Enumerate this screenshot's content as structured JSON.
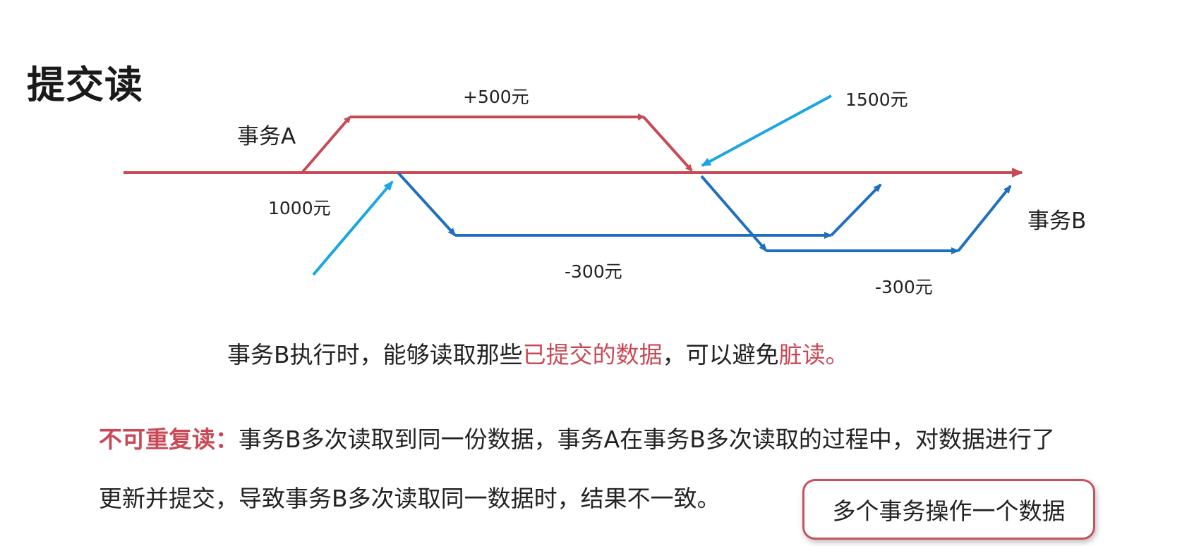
{
  "title": "提交读",
  "diagram": {
    "txn_a_label": "事务A",
    "txn_b_label": "事务B",
    "amount_plus": "+500元",
    "amount_1500": "1500元",
    "amount_1000": "1000元",
    "amount_minus_1": "-300元",
    "amount_minus_2": "-300元",
    "colors": {
      "red": "#c74a55",
      "blue": "#1e6fbf",
      "cyan": "#1aa6e2"
    }
  },
  "description": {
    "part1": "事务B执行时，能够读取那些",
    "highlight1": "已提交的数据",
    "part2": "，可以避免",
    "highlight2": "脏读。"
  },
  "non_repeatable": {
    "term": "不可重复读：",
    "line1": "事务B多次读取到同一份数据，事务A在事务B多次读取的过程中，对数据进行了",
    "line2": "更新并提交，导致事务B多次读取同一数据时，结果不一致。"
  },
  "note": "多个事务操作一个数据"
}
